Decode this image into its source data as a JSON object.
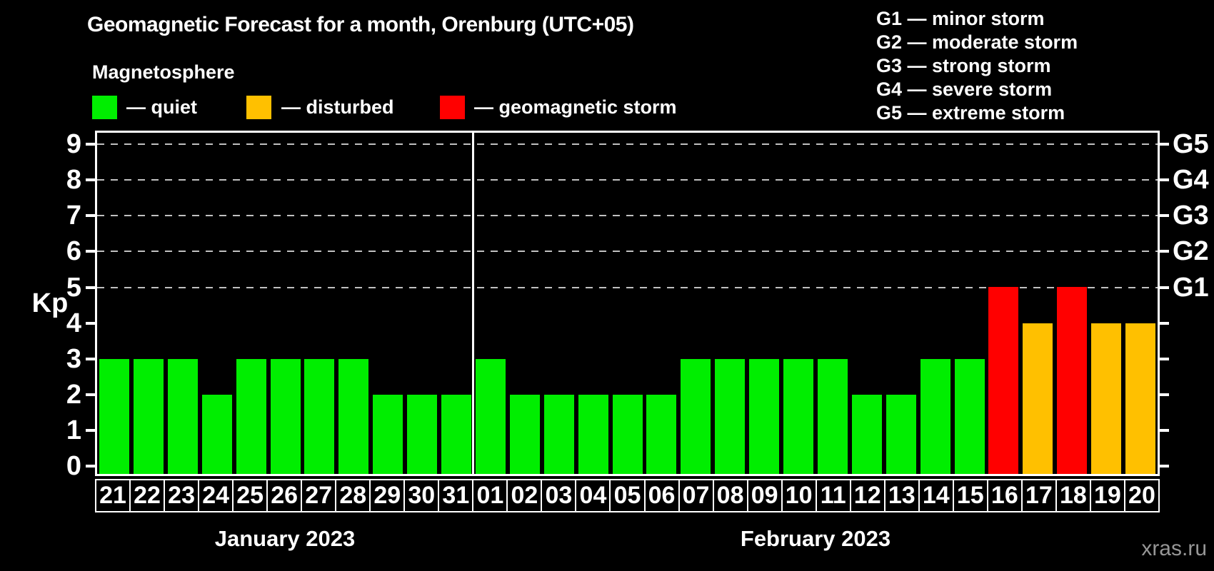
{
  "title": "Geomagnetic Forecast for a month, Orenburg (UTC+05)",
  "legend": {
    "title": "Magnetosphere",
    "items": [
      {
        "name": "quiet",
        "label": "— quiet",
        "color": "#00ee00"
      },
      {
        "name": "disturbed",
        "label": "— disturbed",
        "color": "#ffc000"
      },
      {
        "name": "storm",
        "label": "— geomagnetic storm",
        "color": "#ff0000"
      }
    ]
  },
  "g_legend": [
    "G1 — minor storm",
    "G2 — moderate storm",
    "G3 — strong storm",
    "G4 — severe storm",
    "G5 — extreme storm"
  ],
  "watermark": "xras.ru",
  "chart_data": {
    "type": "bar",
    "title": "Geomagnetic Forecast for a month, Orenburg (UTC+05)",
    "ylabel": "Kp",
    "ylim": [
      0,
      9
    ],
    "yticks": [
      0,
      1,
      2,
      3,
      4,
      5,
      6,
      7,
      8,
      9
    ],
    "gridlines_at_kp": [
      5,
      6,
      7,
      8,
      9
    ],
    "grid": "dashed horizontal at storm levels only",
    "right_axis": [
      {
        "label": "G1",
        "kp": 5
      },
      {
        "label": "G2",
        "kp": 6
      },
      {
        "label": "G3",
        "kp": 7
      },
      {
        "label": "G4",
        "kp": 8
      },
      {
        "label": "G5",
        "kp": 9
      }
    ],
    "months": [
      {
        "label": "January 2023",
        "days": [
          "21",
          "22",
          "23",
          "24",
          "25",
          "26",
          "27",
          "28",
          "29",
          "30",
          "31"
        ],
        "values": [
          3,
          3,
          3,
          2,
          3,
          3,
          3,
          3,
          2,
          2,
          2
        ]
      },
      {
        "label": "February 2023",
        "days": [
          "01",
          "02",
          "03",
          "04",
          "05",
          "06",
          "07",
          "08",
          "09",
          "10",
          "11",
          "12",
          "13",
          "14",
          "15",
          "16",
          "17",
          "18",
          "19",
          "20"
        ],
        "values": [
          3,
          2,
          2,
          2,
          2,
          2,
          3,
          3,
          3,
          3,
          3,
          2,
          2,
          3,
          3,
          5,
          4,
          5,
          4,
          4
        ]
      }
    ],
    "status_colors": {
      "quiet": "#00ee00",
      "disturbed": "#ffc000",
      "storm": "#ff0000"
    },
    "status_thresholds": {
      "disturbed_min_kp": 4,
      "storm_min_kp": 5
    },
    "legend_position": "top-left"
  }
}
